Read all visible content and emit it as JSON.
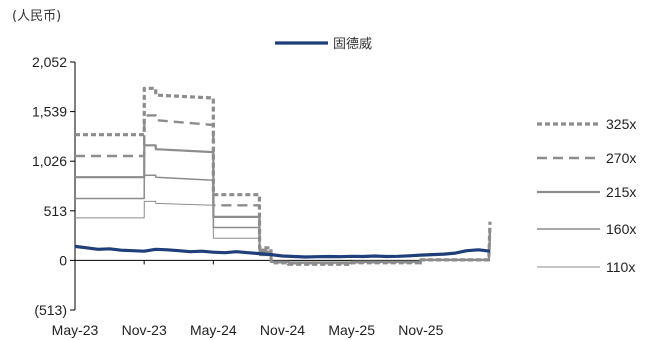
{
  "chart_data": {
    "type": "line",
    "unit_label": "(人民币)",
    "title": "",
    "xlabel": "",
    "ylabel": "",
    "ylim": [
      -513,
      2052
    ],
    "yticks": [
      {
        "value": 2052,
        "label": "2,052"
      },
      {
        "value": 1539,
        "label": "1,539"
      },
      {
        "value": 1026,
        "label": "1,026"
      },
      {
        "value": 513,
        "label": "513"
      },
      {
        "value": 0,
        "label": "0"
      },
      {
        "value": -513,
        "label": "(513)"
      }
    ],
    "xticks": [
      {
        "value": 0,
        "label": "May-23"
      },
      {
        "value": 6,
        "label": "Nov-23"
      },
      {
        "value": 12,
        "label": "May-24"
      },
      {
        "value": 18,
        "label": "Nov-24"
      },
      {
        "value": 24,
        "label": "May-25"
      },
      {
        "value": 30,
        "label": "Nov-25"
      }
    ],
    "xlim": [
      0,
      36
    ],
    "legend_position": "main series top-center; band series right",
    "grid": false,
    "series": [
      {
        "name": "固德威",
        "color": "#1f3f7a",
        "style": "solid-thick",
        "x": [
          0,
          1,
          2,
          3,
          4,
          5,
          6,
          7,
          8,
          9,
          10,
          11,
          12,
          13,
          14,
          15,
          16,
          17,
          18,
          19,
          20,
          21,
          22,
          23,
          24,
          25,
          26,
          27,
          28,
          29,
          30,
          31,
          32,
          33,
          34,
          35,
          36
        ],
        "y": [
          145,
          130,
          115,
          120,
          105,
          100,
          95,
          115,
          110,
          100,
          90,
          95,
          85,
          80,
          90,
          80,
          70,
          60,
          45,
          40,
          35,
          38,
          40,
          38,
          42,
          40,
          45,
          40,
          42,
          48,
          55,
          60,
          65,
          75,
          100,
          110,
          95
        ]
      },
      {
        "name": "325x",
        "color": "#8c8c8c",
        "style": "dotted",
        "x": [
          0,
          3,
          3.01,
          6,
          6.01,
          7,
          7.01,
          12,
          12.01,
          16,
          16.01,
          17,
          17.01,
          18.5,
          18.51,
          24,
          24.01,
          30,
          30.01,
          35.9,
          36
        ],
        "y": [
          1300,
          1300,
          1300,
          1300,
          1780,
          1780,
          1710,
          1680,
          680,
          680,
          130,
          130,
          -25,
          -25,
          -40,
          -40,
          -25,
          -25,
          5,
          5,
          400
        ]
      },
      {
        "name": "270x",
        "color": "#8c8c8c",
        "style": "dashed",
        "x": [
          0,
          3,
          3.01,
          6,
          6.01,
          7,
          7.01,
          12,
          12.01,
          16,
          16.01,
          17,
          17.01,
          18.5,
          18.51,
          24,
          24.01,
          30,
          30.01,
          35.9,
          36
        ],
        "y": [
          1080,
          1080,
          1080,
          1080,
          1500,
          1500,
          1450,
          1400,
          570,
          570,
          110,
          110,
          -20,
          -20,
          -30,
          -30,
          -20,
          -20,
          5,
          5,
          330
        ]
      },
      {
        "name": "215x",
        "color": "#8c8c8c",
        "style": "solid-medium",
        "x": [
          0,
          3,
          3.01,
          6,
          6.01,
          7,
          7.01,
          12,
          12.01,
          16,
          16.01,
          17,
          17.01,
          18.5,
          18.51,
          24,
          24.01,
          30,
          30.01,
          35.9,
          36
        ],
        "y": [
          860,
          860,
          860,
          860,
          1190,
          1190,
          1150,
          1120,
          450,
          450,
          90,
          90,
          -15,
          -15,
          -25,
          -25,
          -15,
          -15,
          5,
          5,
          260
        ]
      },
      {
        "name": "160x",
        "color": "#8c8c8c",
        "style": "solid-thin",
        "x": [
          0,
          3,
          3.01,
          6,
          6.01,
          7,
          7.01,
          12,
          12.01,
          16,
          16.01,
          17,
          17.01,
          18.5,
          18.51,
          24,
          24.01,
          30,
          30.01,
          35.9,
          36
        ],
        "y": [
          640,
          640,
          640,
          640,
          880,
          880,
          860,
          830,
          340,
          340,
          70,
          70,
          -10,
          -10,
          -20,
          -20,
          -10,
          -10,
          5,
          5,
          190
        ]
      },
      {
        "name": "110x",
        "color": "#8c8c8c",
        "style": "hairline",
        "x": [
          0,
          3,
          3.01,
          6,
          6.01,
          7,
          7.01,
          12,
          12.01,
          16,
          16.01,
          17,
          17.01,
          18.5,
          18.51,
          24,
          24.01,
          30,
          30.01,
          35.9,
          36
        ],
        "y": [
          440,
          440,
          440,
          440,
          610,
          610,
          590,
          570,
          230,
          230,
          50,
          50,
          -8,
          -8,
          -15,
          -15,
          -8,
          -8,
          5,
          5,
          130
        ]
      }
    ]
  }
}
